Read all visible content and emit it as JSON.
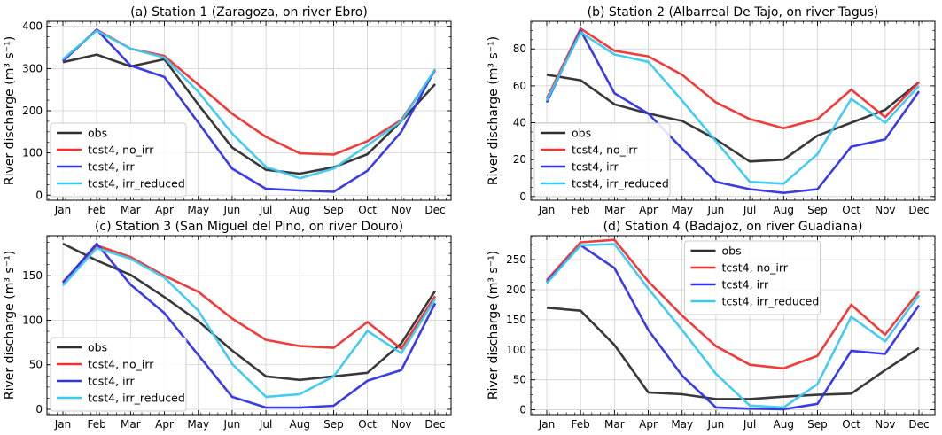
{
  "figure": {
    "colors": {
      "obs": "#2e2e2e",
      "no_irr": "#f03232",
      "irr": "#3232e6",
      "irr_reduced": "#3cc8f0"
    }
  },
  "chart_data": [
    {
      "type": "line",
      "title": "(a) Station 1 (Zaragoza, on river Ebro)",
      "xlabel": "",
      "ylabel": "River discharge (m³ s⁻¹)",
      "categories": [
        "Jan",
        "Feb",
        "Mar",
        "Apr",
        "May",
        "Jun",
        "Jul",
        "Aug",
        "Sep",
        "Oct",
        "Nov",
        "Dec"
      ],
      "ylim": [
        -12,
        412
      ],
      "yticks": [
        0,
        100,
        200,
        300,
        400
      ],
      "legend": "lower-left",
      "grid": true,
      "series": [
        {
          "name": "obs",
          "color": "#2e2e2e",
          "values": [
            315,
            333,
            305,
            322,
            215,
            113,
            60,
            51,
            66,
            97,
            175,
            263
          ]
        },
        {
          "name": "tcst4, no_irr",
          "color": "#f03232",
          "values": [
            318,
            392,
            347,
            330,
            262,
            193,
            138,
            99,
            96,
            128,
            178,
            296
          ]
        },
        {
          "name": "tcst4, irr",
          "color": "#3232e6",
          "values": [
            318,
            392,
            307,
            280,
            172,
            63,
            15,
            11,
            8,
            58,
            150,
            298
          ]
        },
        {
          "name": "tcst4, irr_reduced",
          "color": "#3cc8f0",
          "values": [
            322,
            390,
            347,
            326,
            245,
            146,
            67,
            40,
            63,
            118,
            175,
            298
          ]
        }
      ]
    },
    {
      "type": "line",
      "title": "(b) Station 2 (Albarreal De Tajo, on river Tagus)",
      "xlabel": "",
      "ylabel": "River discharge (m³ s⁻¹)",
      "categories": [
        "Jan",
        "Feb",
        "Mar",
        "Apr",
        "May",
        "Jun",
        "Jul",
        "Aug",
        "Sep",
        "Oct",
        "Nov",
        "Dec"
      ],
      "ylim": [
        -2,
        95
      ],
      "yticks": [
        0,
        20,
        40,
        60,
        80
      ],
      "legend": "lower-left",
      "grid": true,
      "series": [
        {
          "name": "obs",
          "color": "#2e2e2e",
          "values": [
            66,
            63,
            50,
            45,
            41,
            31,
            19,
            20,
            33,
            40,
            47,
            62
          ]
        },
        {
          "name": "tcst4, no_irr",
          "color": "#f03232",
          "values": [
            53,
            91,
            79,
            76,
            66,
            51,
            42,
            37,
            42,
            58,
            43,
            62
          ]
        },
        {
          "name": "tcst4, irr",
          "color": "#3232e6",
          "values": [
            51,
            90,
            56,
            45,
            26,
            8,
            4,
            2,
            4,
            27,
            31,
            57
          ]
        },
        {
          "name": "tcst4, irr_reduced",
          "color": "#3cc8f0",
          "values": [
            52,
            89,
            77,
            73,
            52,
            30,
            8,
            7,
            23,
            53,
            40,
            60
          ]
        }
      ]
    },
    {
      "type": "line",
      "title": "(c) Station 3 (San Miguel del Pino, on river Douro)",
      "xlabel": "",
      "ylabel": "River discharge (m³ s⁻¹)",
      "categories": [
        "Jan",
        "Feb",
        "Mar",
        "Apr",
        "May",
        "Jun",
        "Jul",
        "Aug",
        "Sep",
        "Oct",
        "Nov",
        "Dec"
      ],
      "ylim": [
        -6,
        195
      ],
      "yticks": [
        0,
        50,
        100,
        150
      ],
      "legend": "lower-left",
      "grid": true,
      "series": [
        {
          "name": "obs",
          "color": "#2e2e2e",
          "values": [
            186,
            167,
            151,
            126,
            99,
            66,
            37,
            33,
            37,
            41,
            74,
            133
          ]
        },
        {
          "name": "tcst4, no_irr",
          "color": "#f03232",
          "values": [
            143,
            184,
            171,
            150,
            132,
            102,
            78,
            71,
            69,
            98,
            68,
            127
          ]
        },
        {
          "name": "tcst4, irr",
          "color": "#3232e6",
          "values": [
            142,
            186,
            140,
            108,
            61,
            14,
            2,
            2,
            4,
            32,
            44,
            119
          ]
        },
        {
          "name": "tcst4, irr_reduced",
          "color": "#3cc8f0",
          "values": [
            139,
            181,
            169,
            148,
            111,
            51,
            14,
            17,
            37,
            88,
            63,
            124
          ]
        }
      ]
    },
    {
      "type": "line",
      "title": "(d) Station 4 (Badajoz, on river Guadiana)",
      "xlabel": "",
      "ylabel": "River discharge (m³ s⁻¹)",
      "categories": [
        "Jan",
        "Feb",
        "Mar",
        "Apr",
        "May",
        "Jun",
        "Jul",
        "Aug",
        "Sep",
        "Oct",
        "Nov",
        "Dec"
      ],
      "ylim": [
        -8,
        290
      ],
      "yticks": [
        0,
        50,
        100,
        150,
        200,
        250
      ],
      "legend": "upper-center",
      "grid": true,
      "series": [
        {
          "name": "obs",
          "color": "#2e2e2e",
          "values": [
            170,
            165,
            108,
            29,
            26,
            18,
            18,
            22,
            25,
            27,
            66,
            103
          ]
        },
        {
          "name": "tcst4, no_irr",
          "color": "#f03232",
          "values": [
            216,
            279,
            283,
            214,
            157,
            106,
            75,
            69,
            90,
            175,
            125,
            197
          ]
        },
        {
          "name": "tcst4, irr",
          "color": "#3232e6",
          "values": [
            213,
            274,
            236,
            133,
            57,
            4,
            2,
            1,
            10,
            98,
            93,
            174
          ]
        },
        {
          "name": "tcst4, irr_reduced",
          "color": "#3cc8f0",
          "values": [
            211,
            274,
            276,
            202,
            133,
            60,
            7,
            4,
            43,
            155,
            114,
            191
          ]
        }
      ]
    }
  ]
}
